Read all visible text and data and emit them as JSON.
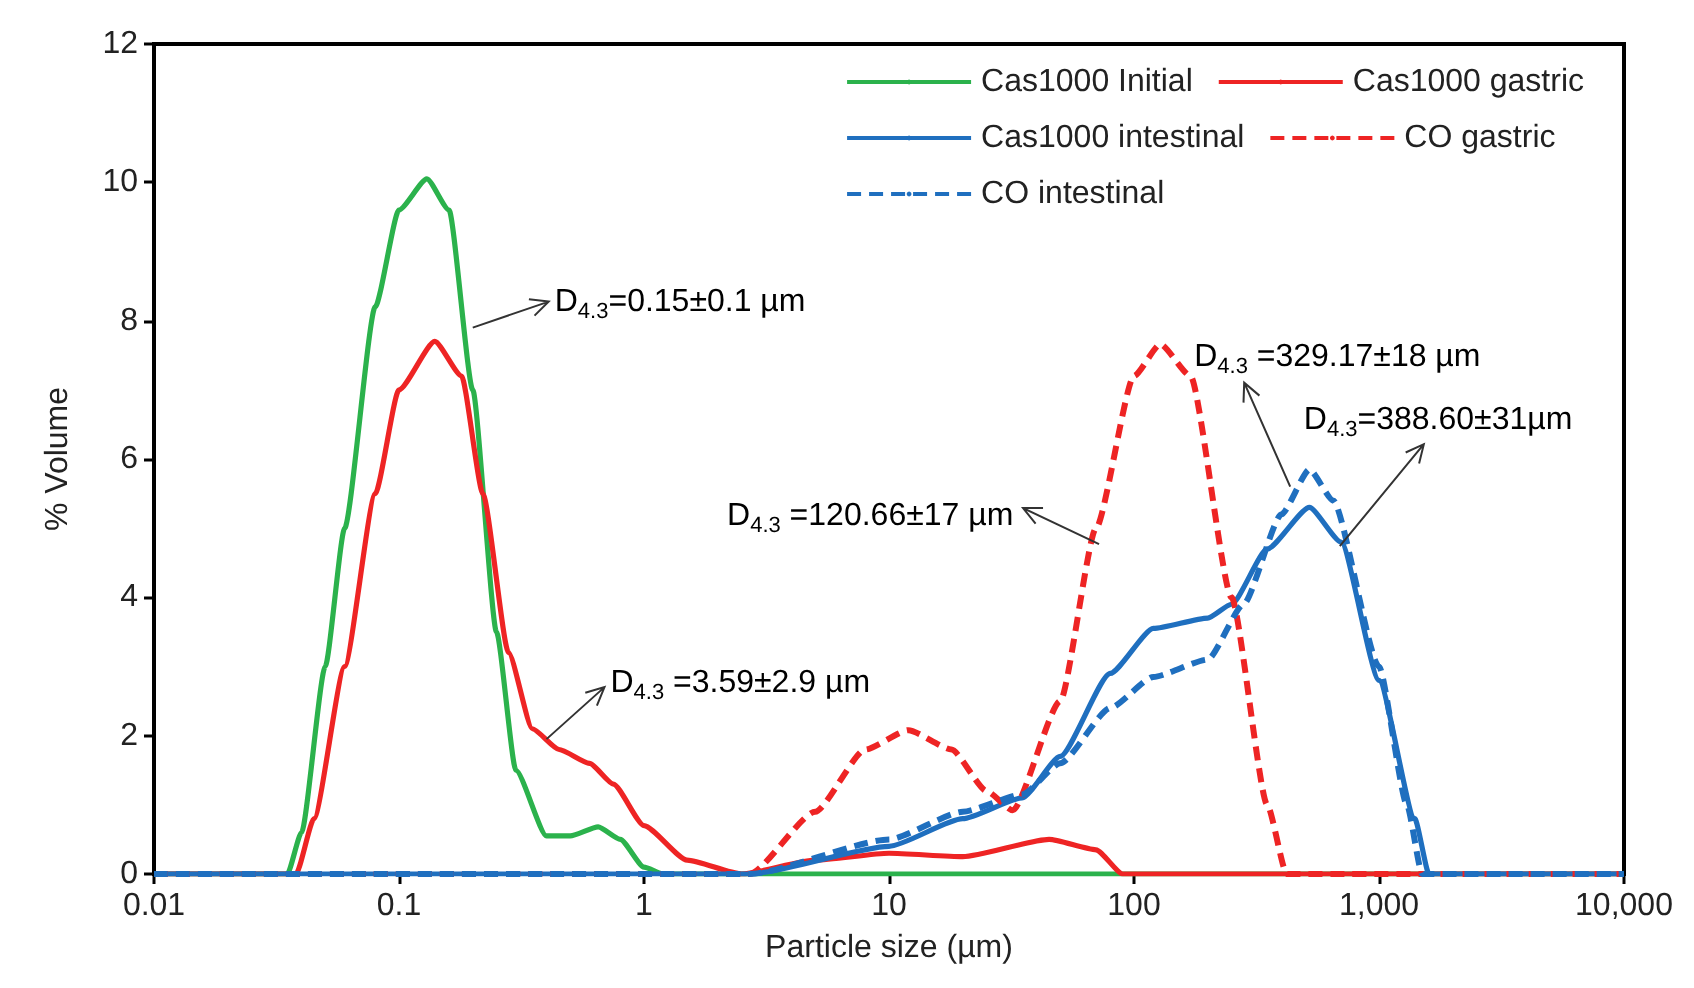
{
  "chart_data": {
    "type": "line",
    "xlabel": "Particle size (µm)",
    "ylabel": "% Volume",
    "log": "x",
    "xlim": [
      0.01,
      10000
    ],
    "xticks": [
      0.01,
      0.1,
      1,
      10,
      100,
      {
        "value": 1000,
        "label": "1,000"
      },
      {
        "value": 10000,
        "label": "10,000"
      }
    ],
    "ylim": [
      0,
      12
    ],
    "yticks": [
      0,
      2,
      4,
      6,
      8,
      10,
      12
    ],
    "grid": false,
    "legend": "top right",
    "marker": "none",
    "series": [
      {
        "name": "Cas1000 Initial",
        "color": "#2bb24c",
        "line_style": "solid",
        "x": [
          0.01,
          0.035,
          0.04,
          0.05,
          0.06,
          0.08,
          0.1,
          0.13,
          0.16,
          0.2,
          0.25,
          0.3,
          0.4,
          0.5,
          0.65,
          0.8,
          1,
          1.2,
          10000
        ],
        "values": [
          0,
          0,
          0.6,
          3,
          5,
          8.2,
          9.6,
          10.05,
          9.6,
          7,
          3.5,
          1.5,
          0.55,
          0.55,
          0.68,
          0.5,
          0.1,
          0,
          0
        ]
      },
      {
        "name": "Cas1000 gastric",
        "color": "#ee2424",
        "line_style": "solid",
        "x": [
          0.01,
          0.038,
          0.045,
          0.06,
          0.08,
          0.1,
          0.14,
          0.18,
          0.22,
          0.28,
          0.35,
          0.45,
          0.6,
          0.75,
          1,
          1.5,
          2.5,
          5,
          10,
          20,
          45,
          70,
          90,
          10000
        ],
        "values": [
          0,
          0,
          0.8,
          3,
          5.5,
          7,
          7.7,
          7.2,
          5.5,
          3.2,
          2.1,
          1.8,
          1.6,
          1.3,
          0.7,
          0.2,
          0,
          0.2,
          0.3,
          0.25,
          0.5,
          0.35,
          0,
          0
        ]
      },
      {
        "name": "Cas1000 intestinal",
        "color": "#1f6fbf",
        "line_style": "solid",
        "x": [
          0.01,
          2.7,
          10,
          20,
          35,
          50,
          80,
          120,
          200,
          250,
          350,
          520,
          700,
          1000,
          1400,
          1600,
          10000
        ],
        "values": [
          0,
          0,
          0.4,
          0.8,
          1.1,
          1.7,
          2.9,
          3.55,
          3.7,
          3.9,
          4.7,
          5.3,
          4.8,
          2.8,
          0.8,
          0,
          0
        ]
      },
      {
        "name": "CO gastric",
        "color": "#ee2424",
        "line_style": "dashed",
        "x": [
          0.01,
          2.7,
          5,
          8,
          12,
          18,
          25,
          32,
          50,
          70,
          100,
          128,
          170,
          250,
          350,
          420,
          10000
        ],
        "values": [
          0,
          0,
          0.9,
          1.8,
          2.08,
          1.8,
          1.2,
          0.92,
          2.5,
          5,
          7.2,
          7.66,
          7.2,
          4,
          1,
          0,
          0
        ]
      },
      {
        "name": "CO intestinal",
        "color": "#1f6fbf",
        "line_style": "dashed",
        "x": [
          0.01,
          2.7,
          10,
          20,
          35,
          50,
          80,
          120,
          200,
          280,
          400,
          520,
          650,
          1000,
          1300,
          1500,
          10000
        ],
        "values": [
          0,
          0,
          0.5,
          0.9,
          1.15,
          1.6,
          2.4,
          2.85,
          3.1,
          3.9,
          5.2,
          5.85,
          5.4,
          3,
          1,
          0,
          0
        ]
      }
    ],
    "annotations": [
      {
        "text": "D$_{4.3}$=0.15±0.1 µm",
        "x": 0.2,
        "y": 7.9
      },
      {
        "text": "D$_{4.3}$ =3.59±2.9 µm",
        "x": 0.4,
        "y": 1.95
      },
      {
        "text": "D$_{4.3}$ =120.66±17 µm",
        "x": 72,
        "y": 4.77
      },
      {
        "text": "D$_{4.3}$ =329.17±18 µm",
        "x": 434,
        "y": 5.6
      },
      {
        "text": "D$_{4.3}$=388.60±31µm",
        "x": 692,
        "y": 4.74
      }
    ]
  }
}
